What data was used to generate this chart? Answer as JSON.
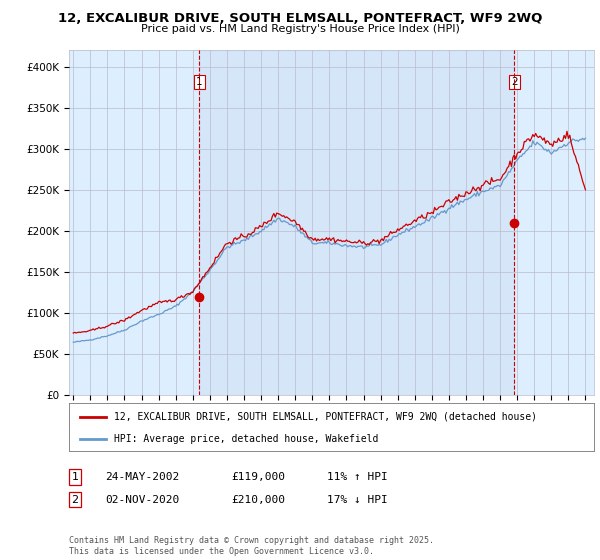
{
  "title": "12, EXCALIBUR DRIVE, SOUTH ELMSALL, PONTEFRACT, WF9 2WQ",
  "subtitle": "Price paid vs. HM Land Registry's House Price Index (HPI)",
  "ylim": [
    0,
    420000
  ],
  "yticks": [
    0,
    50000,
    100000,
    150000,
    200000,
    250000,
    300000,
    350000,
    400000
  ],
  "ytick_labels": [
    "£0",
    "£50K",
    "£100K",
    "£150K",
    "£200K",
    "£250K",
    "£300K",
    "£350K",
    "£400K"
  ],
  "sale1_date": "24-MAY-2002",
  "sale1_price": 119000,
  "sale1_hpi_text": "11% ↑ HPI",
  "sale2_date": "02-NOV-2020",
  "sale2_price": 210000,
  "sale2_hpi_text": "17% ↓ HPI",
  "marker1_x": 2002.38,
  "marker1_y": 119000,
  "marker2_x": 2020.83,
  "marker2_y": 210000,
  "legend_line1": "12, EXCALIBUR DRIVE, SOUTH ELMSALL, PONTEFRACT, WF9 2WQ (detached house)",
  "legend_line2": "HPI: Average price, detached house, Wakefield",
  "footnote": "Contains HM Land Registry data © Crown copyright and database right 2025.\nThis data is licensed under the Open Government Licence v3.0.",
  "line_color_red": "#cc0000",
  "line_color_blue": "#6699cc",
  "vline_color": "#cc0000",
  "background_color": "#ffffff",
  "chart_bg_color": "#ddeeff",
  "grid_color": "#bbbbcc",
  "xmin": 1994.75,
  "xmax": 2025.5
}
